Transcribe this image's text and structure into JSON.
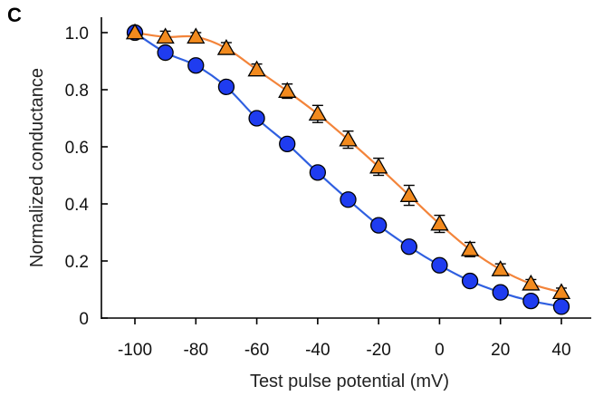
{
  "panel_label": "C",
  "colors": {
    "blue_marker": "#1f3cf0",
    "blue_line": "#2f5fe0",
    "orange_marker": "#f28a1e",
    "orange_line": "#f3843a",
    "axis": "#000000",
    "error_bar": "#000000"
  },
  "chart_data": {
    "type": "scatter",
    "xlabel": "Test pulse potential (mV)",
    "ylabel": "Normalized conductance",
    "xlim": [
      -100,
      40
    ],
    "ylim": [
      0,
      1.0
    ],
    "x_ticks": [
      -100,
      -80,
      -60,
      -40,
      -20,
      0,
      20,
      40
    ],
    "x_tick_labels": [
      "-100",
      "-80",
      "-60",
      "-40",
      "-20",
      "0",
      "20",
      "40"
    ],
    "y_ticks": [
      0,
      0.2,
      0.4,
      0.6,
      0.8,
      1.0
    ],
    "y_tick_labels": [
      "0",
      "0.2",
      "0.4",
      "0.6",
      "0.8",
      "1.0"
    ],
    "grid": false,
    "legend": "none",
    "series": [
      {
        "marker": "circle",
        "color": "#1f3cf0",
        "line_color": "#2f5fe0",
        "x": [
          -100,
          -90,
          -80,
          -70,
          -60,
          -50,
          -40,
          -30,
          -20,
          -10,
          0,
          10,
          20,
          30,
          40
        ],
        "y": [
          1.0,
          0.93,
          0.885,
          0.81,
          0.7,
          0.61,
          0.51,
          0.415,
          0.325,
          0.25,
          0.185,
          0.13,
          0.09,
          0.06,
          0.04
        ],
        "error": [
          0,
          0,
          0,
          0,
          0,
          0,
          0,
          0,
          0,
          0,
          0,
          0,
          0,
          0,
          0
        ]
      },
      {
        "marker": "triangle",
        "color": "#f28a1e",
        "line_color": "#f3843a",
        "x": [
          -100,
          -90,
          -80,
          -70,
          -60,
          -50,
          -40,
          -30,
          -20,
          -10,
          0,
          10,
          20,
          30,
          40
        ],
        "y": [
          1.0,
          0.985,
          0.985,
          0.945,
          0.87,
          0.795,
          0.715,
          0.625,
          0.53,
          0.43,
          0.33,
          0.24,
          0.17,
          0.12,
          0.09
        ],
        "error": [
          0.01,
          0.02,
          0.015,
          0.02,
          0.02,
          0.025,
          0.03,
          0.03,
          0.03,
          0.035,
          0.03,
          0.025,
          0.02,
          0.015,
          0.015
        ]
      }
    ]
  }
}
